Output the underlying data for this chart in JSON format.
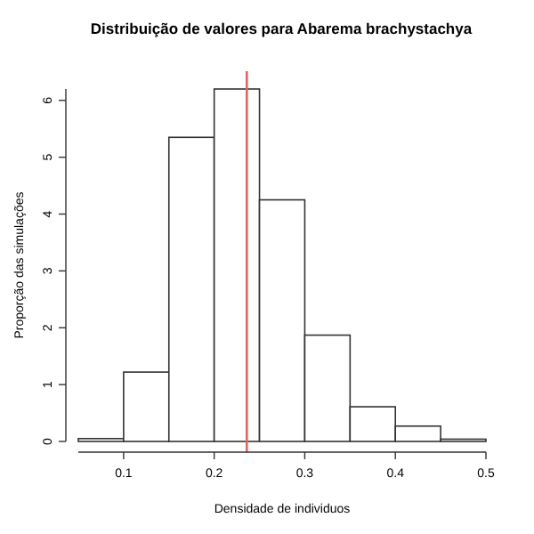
{
  "chart_data": {
    "type": "histogram",
    "title": "Distribuição de valores para Abarema brachystachya",
    "xlabel": "Densidade de individuos",
    "ylabel": "Proporção das simulações",
    "bins": [
      0.05,
      0.1,
      0.15,
      0.2,
      0.25,
      0.3,
      0.35,
      0.4,
      0.45,
      0.5
    ],
    "values": [
      0.05,
      1.22,
      5.35,
      6.2,
      4.25,
      1.87,
      0.61,
      0.27,
      0.04
    ],
    "color": "#ffffff",
    "xlim": [
      0.05,
      0.5
    ],
    "xticks": [
      0.1,
      0.2,
      0.3,
      0.4,
      0.5
    ],
    "ylim": [
      0,
      6.2
    ],
    "yticks": [
      0,
      1,
      2,
      3,
      4,
      5,
      6
    ],
    "ref_lines": [
      {
        "axis": "x",
        "value": 0.236,
        "color": "#e06666"
      }
    ]
  }
}
